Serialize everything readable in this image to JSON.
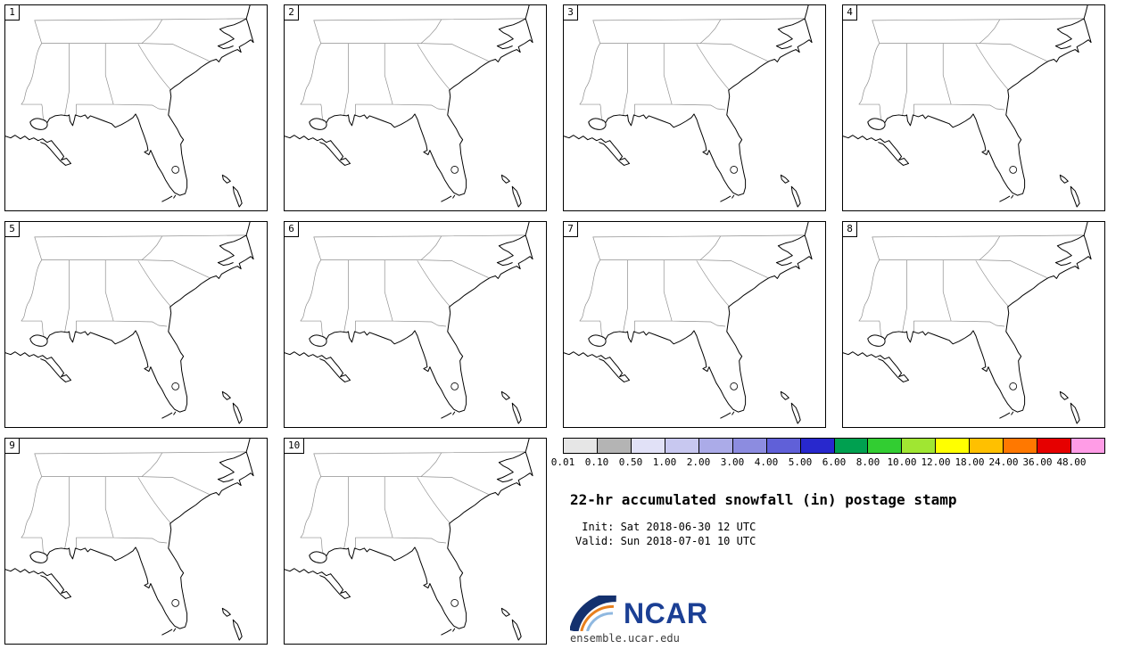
{
  "panels": [
    {
      "label": "1"
    },
    {
      "label": "2"
    },
    {
      "label": "3"
    },
    {
      "label": "4"
    },
    {
      "label": "5"
    },
    {
      "label": "6"
    },
    {
      "label": "7"
    },
    {
      "label": "8"
    },
    {
      "label": "9"
    },
    {
      "label": "10"
    }
  ],
  "colorbar": {
    "ticks": [
      "0.01",
      "0.10",
      "0.50",
      "1.00",
      "2.00",
      "3.00",
      "4.00",
      "5.00",
      "6.00",
      "8.00",
      "10.00",
      "12.00",
      "18.00",
      "24.00",
      "36.00",
      "48.00"
    ],
    "segment_colors": [
      "#e6e6e6",
      "#b4b4b4",
      "#e1e1f7",
      "#c8c8f0",
      "#ababe8",
      "#8c8ce0",
      "#6060d8",
      "#2828cd",
      "#00a050",
      "#32cd32",
      "#a0e632",
      "#ffff00",
      "#ffc000",
      "#ff7800",
      "#e60000",
      "#ff9ce6"
    ]
  },
  "info": {
    "title": "22-hr accumulated snowfall (in) postage stamp",
    "init_line": " Init: Sat 2018-06-30 12 UTC",
    "valid_line": "Valid: Sun 2018-07-01 10 UTC"
  },
  "branding": {
    "logo_text": "NCAR",
    "site": "ensemble.ucar.edu"
  },
  "chart_data": {
    "type": "heatmap",
    "title": "22-hr accumulated snowfall (in) postage stamp",
    "subtitle": [
      "Init: Sat 2018-06-30 12 UTC",
      "Valid: Sun 2018-07-01 10 UTC"
    ],
    "panel_members": [
      1,
      2,
      3,
      4,
      5,
      6,
      7,
      8,
      9,
      10
    ],
    "region": "Southeastern United States",
    "colorbar_levels_in": [
      0.01,
      0.1,
      0.5,
      1.0,
      2.0,
      3.0,
      4.0,
      5.0,
      6.0,
      8.0,
      10.0,
      12.0,
      18.0,
      24.0,
      36.0,
      48.0
    ],
    "values_note": "all ensemble members show zero accumulated snowfall (blank maps)",
    "legend_position": "bottom-right",
    "grid": "off"
  }
}
